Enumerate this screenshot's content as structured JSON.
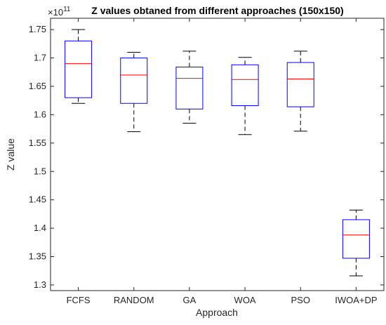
{
  "chart_data": {
    "type": "box",
    "title": "Z values obtaned from different approaches (150x150)",
    "xlabel": "Approach",
    "ylabel": "Z value",
    "y_exponent_base": "×10",
    "y_exponent_power": "11",
    "ylim": [
      1.29,
      1.77
    ],
    "yticks": [
      "1.3",
      "1.35",
      "1.4",
      "1.45",
      "1.5",
      "1.55",
      "1.6",
      "1.65",
      "1.7",
      "1.75"
    ],
    "grid": false,
    "categories": [
      "FCFS",
      "RANDOM",
      "GA",
      "WOA",
      "PSO",
      "IWOA+DP"
    ],
    "boxes": [
      {
        "name": "FCFS",
        "min": 1.62,
        "q1": 1.63,
        "median": 1.69,
        "q3": 1.73,
        "max": 1.75
      },
      {
        "name": "RANDOM",
        "min": 1.57,
        "q1": 1.62,
        "median": 1.67,
        "q3": 1.7,
        "max": 1.71
      },
      {
        "name": "GA",
        "min": 1.585,
        "q1": 1.61,
        "median": 1.664,
        "q3": 1.684,
        "max": 1.712
      },
      {
        "name": "WOA",
        "min": 1.565,
        "q1": 1.616,
        "median": 1.662,
        "q3": 1.688,
        "max": 1.701
      },
      {
        "name": "PSO",
        "min": 1.571,
        "q1": 1.614,
        "median": 1.663,
        "q3": 1.692,
        "max": 1.712
      },
      {
        "name": "IWOA+DP",
        "min": 1.316,
        "q1": 1.347,
        "median": 1.388,
        "q3": 1.415,
        "max": 1.432
      }
    ],
    "colors": {
      "box": "#0000ff",
      "median": "#ff0000",
      "whisker": "#000000",
      "axis": "#262626"
    }
  }
}
